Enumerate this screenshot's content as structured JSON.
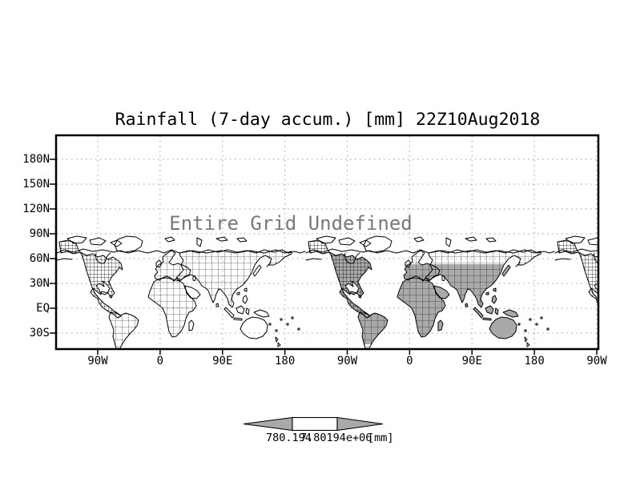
{
  "title": "Rainfall (7-day accum.) [mm] 22Z10Aug2018",
  "plot": {
    "overlay_message": "Entire Grid Undefined",
    "y_axis": {
      "labels": [
        "180N",
        "150N",
        "120N",
        "90N",
        "60N",
        "30N",
        "EQ",
        "30S"
      ]
    },
    "x_axis": {
      "labels": [
        "90W",
        "0",
        "90E",
        "180",
        "90W",
        "0",
        "90E",
        "180",
        "90W"
      ]
    }
  },
  "colorbar": {
    "left_label": "780.194",
    "right_label": "7.80194e+06",
    "units_label": "[mm]"
  },
  "colors": {
    "land_shade": "#a9a9a9",
    "arrow_shade": "#a9a9a9",
    "grid_dots": "#b0b0b0",
    "overlay_text": "#787878",
    "ink": "#000000"
  }
}
